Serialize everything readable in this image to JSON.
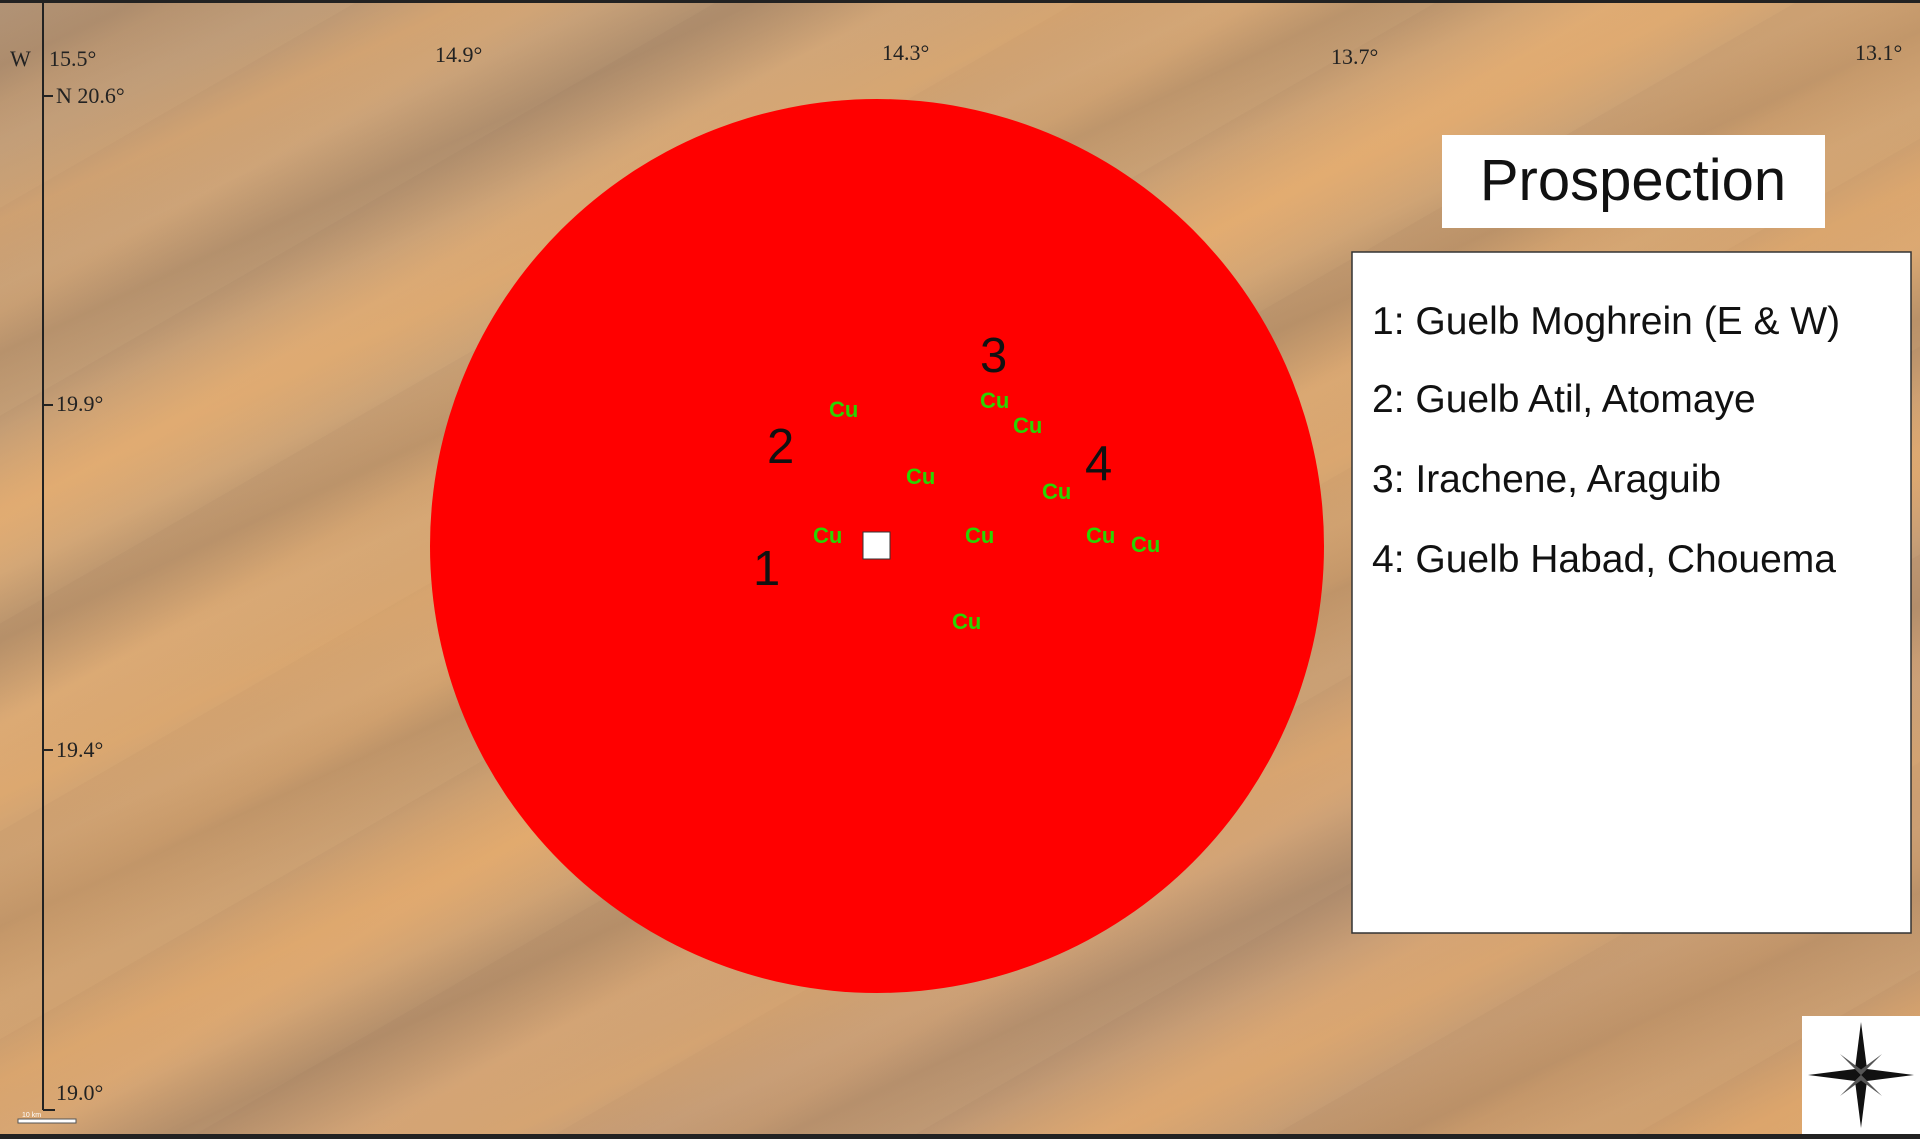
{
  "map": {
    "top_axis": {
      "hemisphere": "W",
      "labels": [
        "15.5°",
        "14.9°",
        "14.3°",
        "13.7°",
        "13.1°"
      ]
    },
    "left_axis": {
      "labels": [
        "N 20.6°",
        "19.9°",
        "19.4°",
        "19.0°"
      ]
    },
    "site_numbers": [
      "1",
      "2",
      "3",
      "4"
    ],
    "deposit_labels": [
      "Cu",
      "Cu",
      "Cu",
      "Cu",
      "Cu",
      "Cu",
      "Cu",
      "Cu",
      "Cu",
      "Cu"
    ],
    "scale_bar": "10 km",
    "title": "Prospection",
    "legend": [
      "1: Guelb Moghrein (E & W)",
      "2: Guelb Atil, Atomaye",
      "3: Irachene, Araguib",
      "4: Guelb Habad, Chouema"
    ]
  }
}
